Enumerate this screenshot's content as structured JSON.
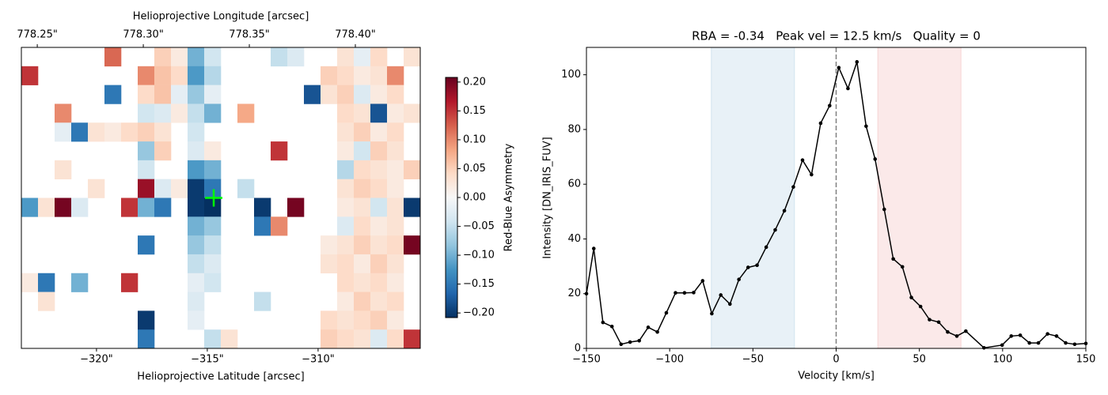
{
  "chart_data": [
    {
      "type": "heatmap",
      "x2label": "Helioprojective Longitude [arcsec]",
      "xlabel": "Helioprojective Latitude [arcsec]",
      "colorbar_label": "Red-Blue Asymmetry",
      "colormap": "RdBu_r",
      "xlim": [
        -323.39,
        -305.39
      ],
      "xticks": [
        {
          "value": -320,
          "label": "−320\""
        },
        {
          "value": -315,
          "label": "−315\""
        },
        {
          "value": -310,
          "label": "−310\""
        }
      ],
      "x2lim": [
        778.2425,
        778.4306
      ],
      "x2ticks": [
        {
          "value": 778.25,
          "label": "778.25\""
        },
        {
          "value": 778.3,
          "label": "778.30\""
        },
        {
          "value": 778.35,
          "label": "778.35\""
        },
        {
          "value": 778.4,
          "label": "778.40\""
        }
      ],
      "clim": [
        -0.208,
        0.208
      ],
      "cticks": [
        {
          "value": -0.2,
          "label": "−0.20"
        },
        {
          "value": -0.15,
          "label": "−0.15"
        },
        {
          "value": -0.1,
          "label": "−0.10"
        },
        {
          "value": -0.05,
          "label": "−0.05"
        },
        {
          "value": 0,
          "label": "0.00"
        },
        {
          "value": 0.05,
          "label": "0.05"
        },
        {
          "value": 0.1,
          "label": "0.10"
        },
        {
          "value": 0.15,
          "label": "0.15"
        },
        {
          "value": 0.2,
          "label": "0.20"
        }
      ],
      "marker": {
        "x": -314.71,
        "y": 8.0,
        "color": "#00ff00"
      },
      "z": [
        [
          null,
          null,
          null,
          null,
          null,
          0.12,
          null,
          null,
          0.05,
          0.02,
          -0.1,
          -0.04,
          null,
          null,
          null,
          -0.05,
          -0.03,
          null,
          null,
          0.03,
          -0.02,
          0.04,
          null,
          0.03
        ],
        [
          0.15,
          null,
          null,
          null,
          null,
          null,
          null,
          0.1,
          0.06,
          0.04,
          -0.12,
          -0.06,
          null,
          null,
          null,
          null,
          null,
          null,
          0.05,
          0.04,
          0.02,
          0.03,
          0.1,
          null
        ],
        [
          null,
          null,
          null,
          null,
          null,
          -0.15,
          null,
          0.04,
          0.06,
          -0.02,
          -0.08,
          -0.02,
          null,
          null,
          null,
          null,
          null,
          -0.18,
          0.03,
          0.05,
          -0.03,
          0.02,
          0.04,
          null
        ],
        [
          null,
          null,
          0.1,
          null,
          null,
          null,
          null,
          -0.04,
          -0.03,
          0.02,
          -0.05,
          -0.1,
          null,
          0.08,
          null,
          null,
          null,
          null,
          null,
          0.04,
          0.03,
          -0.18,
          0.02,
          0.03
        ],
        [
          null,
          null,
          -0.02,
          -0.15,
          0.03,
          0.02,
          0.04,
          0.05,
          0.03,
          null,
          -0.04,
          null,
          null,
          null,
          null,
          null,
          null,
          null,
          null,
          0.03,
          0.05,
          0.02,
          0.04,
          null
        ],
        [
          null,
          null,
          null,
          null,
          null,
          null,
          null,
          -0.08,
          0.05,
          null,
          -0.03,
          0.02,
          null,
          null,
          null,
          0.15,
          null,
          null,
          null,
          0.02,
          -0.04,
          0.05,
          0.03,
          null
        ],
        [
          null,
          null,
          0.03,
          null,
          null,
          null,
          null,
          -0.04,
          null,
          null,
          -0.12,
          -0.1,
          null,
          null,
          null,
          null,
          null,
          null,
          null,
          -0.06,
          0.04,
          0.03,
          0.02,
          0.05
        ],
        [
          null,
          null,
          null,
          null,
          0.03,
          null,
          null,
          0.18,
          -0.03,
          0.02,
          -0.2,
          -0.15,
          null,
          -0.05,
          null,
          null,
          null,
          null,
          null,
          0.03,
          0.05,
          0.04,
          0.02,
          null
        ],
        [
          -0.12,
          0.03,
          0.2,
          -0.03,
          null,
          null,
          0.15,
          -0.1,
          -0.15,
          null,
          -0.2,
          -0.21,
          null,
          null,
          -0.2,
          null,
          0.2,
          null,
          null,
          0.02,
          0.03,
          -0.04,
          0.03,
          -0.2
        ],
        [
          null,
          null,
          null,
          null,
          null,
          null,
          null,
          null,
          null,
          null,
          -0.1,
          -0.08,
          null,
          null,
          -0.15,
          0.1,
          null,
          null,
          null,
          -0.03,
          0.04,
          0.02,
          0.03,
          null
        ],
        [
          null,
          null,
          null,
          null,
          null,
          null,
          null,
          -0.15,
          null,
          null,
          -0.08,
          -0.05,
          null,
          null,
          null,
          null,
          null,
          null,
          0.02,
          0.03,
          0.05,
          0.03,
          0.04,
          0.2
        ],
        [
          null,
          null,
          null,
          null,
          null,
          null,
          null,
          null,
          null,
          null,
          -0.05,
          -0.03,
          null,
          null,
          null,
          null,
          null,
          null,
          0.03,
          0.04,
          0.02,
          0.05,
          0.03,
          null
        ],
        [
          0.02,
          -0.15,
          null,
          -0.1,
          null,
          null,
          0.15,
          null,
          null,
          null,
          -0.02,
          -0.04,
          null,
          null,
          null,
          null,
          null,
          null,
          null,
          0.04,
          0.03,
          0.04,
          0.02,
          null
        ],
        [
          null,
          0.03,
          null,
          null,
          null,
          null,
          null,
          null,
          null,
          null,
          -0.03,
          null,
          null,
          null,
          -0.05,
          null,
          null,
          null,
          null,
          0.02,
          0.05,
          0.03,
          0.04,
          null
        ],
        [
          null,
          null,
          null,
          null,
          null,
          null,
          null,
          -0.2,
          null,
          null,
          -0.02,
          null,
          null,
          null,
          null,
          null,
          null,
          null,
          0.04,
          0.03,
          0.04,
          0.05,
          0.02,
          null
        ],
        [
          null,
          null,
          null,
          null,
          null,
          null,
          null,
          -0.15,
          null,
          null,
          null,
          -0.05,
          0.03,
          null,
          null,
          null,
          null,
          null,
          0.05,
          0.04,
          0.03,
          -0.03,
          0.04,
          0.15
        ]
      ]
    },
    {
      "type": "line",
      "title": "RBA = -0.34   Peak vel = 12.5 km/s   Quality = 0",
      "xlabel": "Velocity [km/s]",
      "ylabel": "Intensity [DN_IRIS_FUV]",
      "xlim": [
        -150,
        150
      ],
      "ylim": [
        0,
        110
      ],
      "xticks": [
        {
          "value": -150,
          "label": "−150"
        },
        {
          "value": -100,
          "label": "−100"
        },
        {
          "value": -50,
          "label": "−50"
        },
        0,
        50,
        100,
        150
      ],
      "yticks": [
        0,
        20,
        40,
        60,
        80,
        100
      ],
      "spans": [
        {
          "start": -75,
          "end": -25,
          "color": "#1f77b4"
        },
        {
          "start": 25,
          "end": 75,
          "color": "#d62728"
        }
      ],
      "vline": {
        "x": 0,
        "color": "#808080"
      },
      "x": [
        -150,
        -145.6,
        -140.1,
        -134.7,
        -129.2,
        -123.8,
        -118.3,
        -112.9,
        -107.4,
        -102.0,
        -96.5,
        -91.1,
        -85.6,
        -80.2,
        -74.7,
        -69.3,
        -63.8,
        -58.4,
        -52.9,
        -47.5,
        -42.0,
        -36.6,
        -31.1,
        -25.7,
        -20.2,
        -14.8,
        -9.3,
        -3.9,
        1.6,
        7.1,
        12.5,
        18.0,
        23.4,
        28.9,
        34.3,
        39.8,
        45.2,
        50.7,
        56.1,
        61.6,
        67.0,
        72.5,
        77.9,
        88.8,
        99.7,
        105.2,
        110.6,
        116.1,
        121.5,
        127.0,
        132.4,
        137.9,
        143.3,
        150
      ],
      "series": [
        {
          "color": "#000000",
          "values": [
            20,
            36.5,
            9.5,
            8,
            1.5,
            2.3,
            2.8,
            7.7,
            6,
            13,
            20.3,
            20.3,
            20.4,
            24.7,
            12.7,
            19.5,
            16.2,
            25.2,
            29.6,
            30.4,
            37,
            43.3,
            50.3,
            59,
            68.8,
            63.5,
            82.3,
            88.7,
            102.6,
            95,
            104.7,
            81.2,
            69.2,
            50.8,
            32.7,
            29.8,
            18.6,
            15.3,
            10.5,
            9.6,
            6.0,
            4.5,
            6.3,
            0.2,
            1.2,
            4.5,
            4.8,
            2.0,
            2.0,
            5.3,
            4.5,
            2.0,
            1.5,
            1.8
          ]
        }
      ]
    }
  ]
}
